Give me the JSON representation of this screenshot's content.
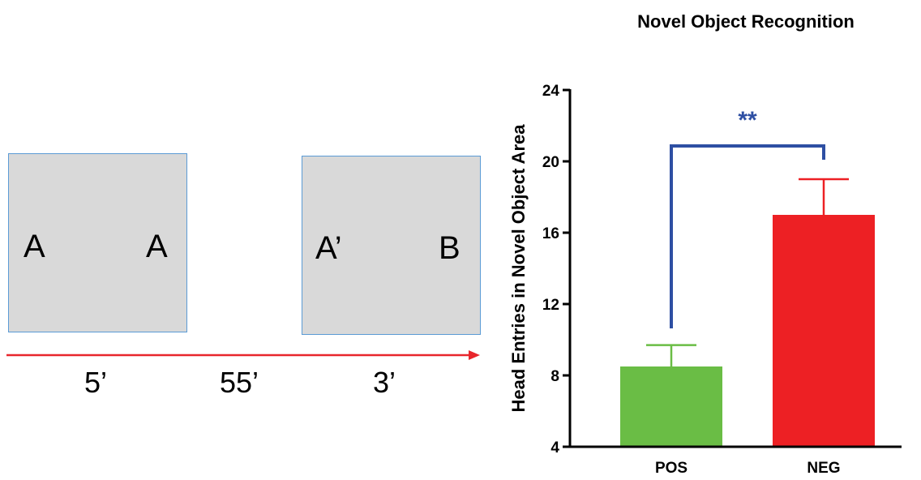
{
  "protocol": {
    "familiarization": {
      "left_label": "A",
      "right_label": "A"
    },
    "test": {
      "left_label": "A’",
      "right_label": "B"
    },
    "durations": [
      "5’",
      "55’",
      "3’"
    ],
    "arrow_color": "#e8262c",
    "box_fill": "#d9d9d9",
    "box_border": "#5b9bd5"
  },
  "chart_data": {
    "type": "bar",
    "title": "Novel Object Recognition",
    "xlabel": "",
    "ylabel": "Head Entries in Novel Object Area",
    "categories": [
      "POS",
      "NEG"
    ],
    "values": [
      8.5,
      17.0
    ],
    "errors": [
      1.2,
      2.0
    ],
    "colors": [
      "#6abd45",
      "#ed2024"
    ],
    "ylim": [
      4,
      24
    ],
    "yticks": [
      4,
      8,
      12,
      16,
      20,
      24
    ],
    "significance": {
      "label": "**",
      "color": "#2e4fa3"
    },
    "grid": false
  }
}
